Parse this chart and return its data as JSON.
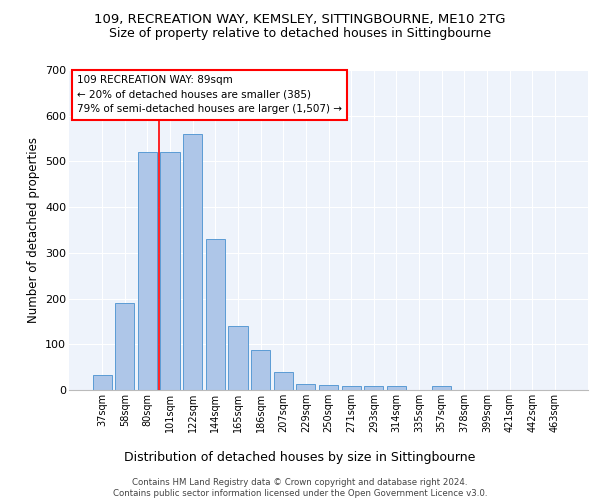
{
  "title1": "109, RECREATION WAY, KEMSLEY, SITTINGBOURNE, ME10 2TG",
  "title2": "Size of property relative to detached houses in Sittingbourne",
  "xlabel": "Distribution of detached houses by size in Sittingbourne",
  "ylabel": "Number of detached properties",
  "categories": [
    "37sqm",
    "58sqm",
    "80sqm",
    "101sqm",
    "122sqm",
    "144sqm",
    "165sqm",
    "186sqm",
    "207sqm",
    "229sqm",
    "250sqm",
    "271sqm",
    "293sqm",
    "314sqm",
    "335sqm",
    "357sqm",
    "378sqm",
    "399sqm",
    "421sqm",
    "442sqm",
    "463sqm"
  ],
  "values": [
    32,
    190,
    520,
    520,
    560,
    330,
    140,
    87,
    40,
    13,
    10,
    8,
    8,
    8,
    0,
    9,
    0,
    0,
    0,
    0,
    0
  ],
  "bar_color": "#aec6e8",
  "bar_edge_color": "#5b9bd5",
  "red_line_index": 2.5,
  "annotation_line1": "109 RECREATION WAY: 89sqm",
  "annotation_line2": "← 20% of detached houses are smaller (385)",
  "annotation_line3": "79% of semi-detached houses are larger (1,507) →",
  "footer_text": "Contains HM Land Registry data © Crown copyright and database right 2024.\nContains public sector information licensed under the Open Government Licence v3.0.",
  "ylim": [
    0,
    700
  ],
  "yticks": [
    0,
    100,
    200,
    300,
    400,
    500,
    600,
    700
  ],
  "bg_color": "#eef3fb",
  "grid_color": "#ffffff",
  "title1_fontsize": 9.5,
  "title2_fontsize": 9
}
